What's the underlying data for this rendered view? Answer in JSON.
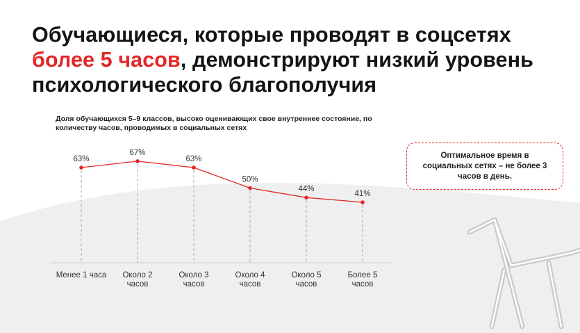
{
  "slide": {
    "title_part1": "Обучающиеся, которые проводят в соцсетях",
    "title_accent": "более 5 часов",
    "title_part2": ", демонстрируют низкий уровень психологического благополучия",
    "accent_color": "#e32726"
  },
  "note": {
    "text": "Оптимальное время в социальных сетях – не более 3 часов в день."
  },
  "chart_data": {
    "type": "line",
    "title": "Доля обучающихся 5–9 классов, высоко оценивающих свое внутреннее состояние, по количеству часов, проводимых в социальных сетях",
    "categories": [
      [
        "Менее 1 часа"
      ],
      [
        "Около 2",
        "часов"
      ],
      [
        "Около 3",
        "часов"
      ],
      [
        "Около 4",
        "часов"
      ],
      [
        "Около 5",
        "часов"
      ],
      [
        "Более 5",
        "часов"
      ]
    ],
    "series": [
      {
        "values": [
          63,
          67,
          63,
          50,
          44,
          41
        ],
        "labels": [
          "63%",
          "67%",
          "63%",
          "50%",
          "44%",
          "41%"
        ],
        "color": "#e32726"
      }
    ],
    "ylim": [
      0,
      100
    ],
    "grid": false,
    "legend": "none"
  }
}
